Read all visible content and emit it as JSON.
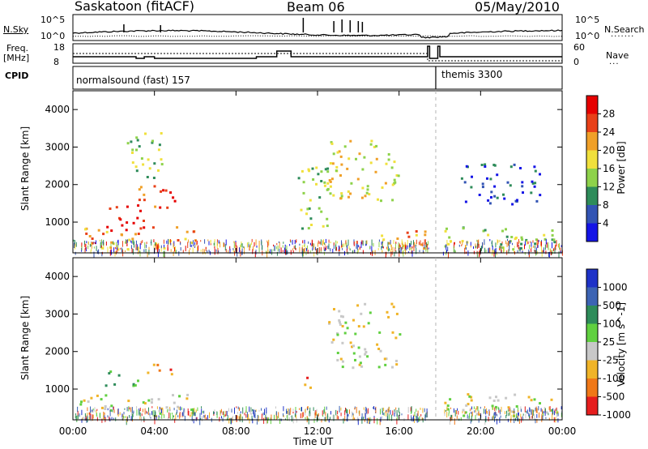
{
  "header": {
    "station": "Saskatoon (fitACF)",
    "beam": "Beam 06",
    "date": "05/May/2010"
  },
  "noise_panel": {
    "left_label": "N.Sky",
    "right_label": "N.Search",
    "ticks": [
      "10^5",
      "10^0"
    ]
  },
  "freq_panel": {
    "left_label": "Freq.",
    "left_unit": "[MHz]",
    "left_ticks": [
      "18",
      "8"
    ],
    "right_label": "Nave",
    "right_ticks": [
      "60",
      "0"
    ]
  },
  "cpid_panel": {
    "label": "CPID",
    "modes": [
      {
        "name": "normalsound (fast) 157",
        "start_hour": 0,
        "end_hour": 17.8
      },
      {
        "name": "themis 3300",
        "start_hour": 17.8,
        "end_hour": 24
      }
    ]
  },
  "chart_data": [
    {
      "type": "heatmap",
      "panel": "power",
      "ylabel": "Slant Range [km]",
      "xlabel": "Time UT",
      "x_range_hours": [
        0,
        24
      ],
      "ylim": [
        180,
        4500
      ],
      "y_ticks": [
        "1000",
        "2000",
        "3000",
        "4000"
      ],
      "x_ticks": [
        "00:00",
        "04:00",
        "08:00",
        "12:00",
        "16:00",
        "20:00",
        "00:00"
      ],
      "colorbar": {
        "label": "Power [dB]",
        "levels": [
          "4",
          "8",
          "12",
          "16",
          "20",
          "24",
          "28"
        ],
        "colors": [
          "#1414e6",
          "#3254b4",
          "#2e8c5a",
          "#8ed24a",
          "#f0e03c",
          "#f0a028",
          "#e84018",
          "#e60000"
        ]
      },
      "features": [
        {
          "t": [
            0.3,
            6.0
          ],
          "r": [
            300,
            900
          ],
          "level": 5
        },
        {
          "t": [
            1.5,
            3.5
          ],
          "r": [
            800,
            1500
          ],
          "level": 7
        },
        {
          "t": [
            3.2,
            5.5
          ],
          "r": [
            1400,
            2000
          ],
          "level": 6
        },
        {
          "t": [
            2.5,
            4.5
          ],
          "r": [
            2200,
            3400
          ],
          "level": 3
        },
        {
          "t": [
            10.8,
            12.5
          ],
          "r": [
            700,
            2600
          ],
          "level": 3
        },
        {
          "t": [
            12.5,
            16.0
          ],
          "r": [
            1600,
            3300
          ],
          "level": 4
        },
        {
          "t": [
            15.0,
            17.3
          ],
          "r": [
            250,
            800
          ],
          "level": 5
        },
        {
          "t": [
            17.8,
            24.0
          ],
          "r": [
            300,
            900
          ],
          "level": 3
        },
        {
          "t": [
            19.0,
            23.0
          ],
          "r": [
            1500,
            2600
          ],
          "level": 1
        }
      ]
    },
    {
      "type": "heatmap",
      "panel": "velocity",
      "ylabel": "Slant Range [km]",
      "xlabel": "Time UT",
      "x_range_hours": [
        0,
        24
      ],
      "ylim": [
        180,
        4500
      ],
      "y_ticks": [
        "1000",
        "2000",
        "3000",
        "4000"
      ],
      "x_ticks": [
        "00:00",
        "04:00",
        "08:00",
        "12:00",
        "16:00",
        "20:00",
        "00:00"
      ],
      "colorbar": {
        "label": "Velocity [m s^-1]",
        "levels": [
          "1000",
          "500",
          "100",
          "25",
          "-25",
          "-100",
          "-500",
          "-1000"
        ],
        "colors": [
          "#1e32c8",
          "#3c64b4",
          "#2e8c5a",
          "#60d040",
          "#c8c8c8",
          "#f0b428",
          "#f07818",
          "#e61e1e"
        ]
      },
      "features": [
        {
          "t": [
            0.3,
            6.0
          ],
          "r": [
            300,
            900
          ],
          "level": 4
        },
        {
          "t": [
            1.5,
            3.2
          ],
          "r": [
            1000,
            1500
          ],
          "level": 3
        },
        {
          "t": [
            3.5,
            4.8
          ],
          "r": [
            1400,
            1800
          ],
          "level": 6
        },
        {
          "t": [
            11.2,
            11.8
          ],
          "r": [
            900,
            1400
          ],
          "level": 6
        },
        {
          "t": [
            12.5,
            16.0
          ],
          "r": [
            1600,
            3300
          ],
          "level": 4
        },
        {
          "t": [
            17.8,
            24.0
          ],
          "r": [
            300,
            900
          ],
          "level": 4
        }
      ]
    }
  ],
  "time_axis": {
    "label": "Time UT",
    "ticks": [
      "00:00",
      "04:00",
      "08:00",
      "12:00",
      "16:00",
      "20:00",
      "00:00"
    ]
  }
}
